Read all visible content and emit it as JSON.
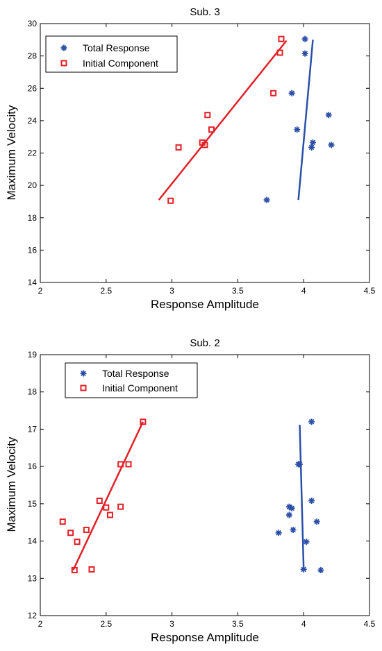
{
  "chart_data": [
    {
      "type": "scatter",
      "title": "Sub. 3",
      "xlabel": "Response Amplitude",
      "ylabel": "Maximum Velocity",
      "xlim": [
        2,
        4.5
      ],
      "ylim": [
        14,
        30
      ],
      "xticks": [
        "2",
        "2.5",
        "3",
        "3.5",
        "4",
        "4.5"
      ],
      "yticks": [
        "14",
        "16",
        "18",
        "20",
        "22",
        "24",
        "26",
        "28",
        "30"
      ],
      "grid": false,
      "legend_position": "top-left",
      "series": [
        {
          "name": "Total Response",
          "marker": "asterisk",
          "color": "#2a4fa8",
          "points": [
            [
              4.01,
              29.05
            ],
            [
              4.01,
              28.15
            ],
            [
              3.91,
              25.7
            ],
            [
              3.95,
              23.45
            ],
            [
              4.19,
              24.35
            ],
            [
              4.07,
              22.65
            ],
            [
              4.06,
              22.35
            ],
            [
              4.21,
              22.5
            ],
            [
              3.72,
              19.1
            ]
          ],
          "fit": [
            [
              3.96,
              19.1
            ],
            [
              4.07,
              29.0
            ]
          ]
        },
        {
          "name": "Initial Component",
          "marker": "square",
          "color": "#e31f26",
          "points": [
            [
              3.83,
              29.05
            ],
            [
              3.82,
              28.2
            ],
            [
              3.77,
              25.7
            ],
            [
              3.27,
              24.35
            ],
            [
              3.3,
              23.45
            ],
            [
              3.23,
              22.65
            ],
            [
              3.25,
              22.5
            ],
            [
              3.05,
              22.35
            ],
            [
              2.99,
              19.05
            ]
          ],
          "fit": [
            [
              2.9,
              19.1
            ],
            [
              3.87,
              28.95
            ]
          ]
        }
      ]
    },
    {
      "type": "scatter",
      "title": "Sub. 2",
      "xlabel": "Response Amplitude",
      "ylabel": "Maximum Velocity",
      "xlim": [
        2,
        4.5
      ],
      "ylim": [
        12,
        19
      ],
      "xticks": [
        "2",
        "2.5",
        "3",
        "3.5",
        "4",
        "4.5"
      ],
      "yticks": [
        "12",
        "13",
        "14",
        "15",
        "16",
        "17",
        "18",
        "19"
      ],
      "grid": false,
      "legend_position": "top-left",
      "series": [
        {
          "name": "Total Response",
          "marker": "asterisk",
          "color": "#2a4fa8",
          "points": [
            [
              4.06,
              17.2
            ],
            [
              3.96,
              16.06
            ],
            [
              3.97,
              16.06
            ],
            [
              4.06,
              15.08
            ],
            [
              3.89,
              14.92
            ],
            [
              3.91,
              14.88
            ],
            [
              3.89,
              14.7
            ],
            [
              4.1,
              14.52
            ],
            [
              3.92,
              14.3
            ],
            [
              3.81,
              14.22
            ],
            [
              4.02,
              13.98
            ],
            [
              4.0,
              13.24
            ],
            [
              4.13,
              13.22
            ]
          ],
          "fit": [
            [
              3.97,
              17.12
            ],
            [
              4.0,
              13.25
            ]
          ]
        },
        {
          "name": "Initial Component",
          "marker": "square",
          "color": "#e31f26",
          "points": [
            [
              2.78,
              17.2
            ],
            [
              2.61,
              16.06
            ],
            [
              2.67,
              16.06
            ],
            [
              2.45,
              15.08
            ],
            [
              2.5,
              14.9
            ],
            [
              2.61,
              14.92
            ],
            [
              2.53,
              14.7
            ],
            [
              2.17,
              14.52
            ],
            [
              2.35,
              14.3
            ],
            [
              2.23,
              14.22
            ],
            [
              2.28,
              13.98
            ],
            [
              2.26,
              13.22
            ],
            [
              2.39,
              13.24
            ]
          ],
          "fit": [
            [
              2.25,
              13.22
            ],
            [
              2.78,
              17.2
            ]
          ]
        }
      ]
    }
  ]
}
